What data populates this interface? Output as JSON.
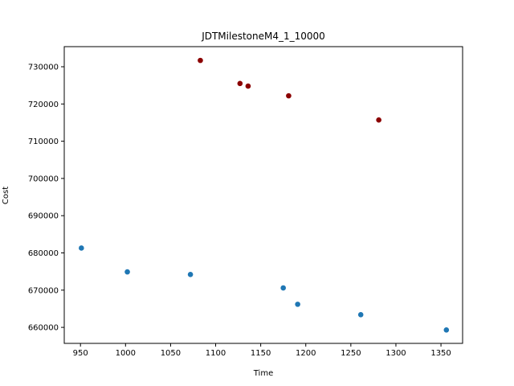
{
  "chart_data": {
    "type": "scatter",
    "title": "JDTMilestoneM4_1_10000",
    "xlabel": "Time",
    "ylabel": "Cost",
    "xlim": [
      932,
      1374
    ],
    "ylim": [
      655700,
      735400
    ],
    "x_ticks": [
      950,
      1000,
      1050,
      1100,
      1150,
      1200,
      1250,
      1300,
      1350
    ],
    "y_ticks": [
      660000,
      670000,
      680000,
      690000,
      700000,
      710000,
      720000,
      730000
    ],
    "grid": false,
    "series": [
      {
        "color": "#1f77b4",
        "points": [
          {
            "x": 951,
            "y": 681300
          },
          {
            "x": 1002,
            "y": 674900
          },
          {
            "x": 1072,
            "y": 674200
          },
          {
            "x": 1175,
            "y": 670600
          },
          {
            "x": 1191,
            "y": 666200
          },
          {
            "x": 1261,
            "y": 663400
          },
          {
            "x": 1356,
            "y": 659300
          }
        ]
      },
      {
        "color": "#8b0000",
        "points": [
          {
            "x": 1083,
            "y": 731700
          },
          {
            "x": 1127,
            "y": 725500
          },
          {
            "x": 1136,
            "y": 724800
          },
          {
            "x": 1181,
            "y": 722200
          },
          {
            "x": 1281,
            "y": 715700
          }
        ]
      }
    ]
  }
}
